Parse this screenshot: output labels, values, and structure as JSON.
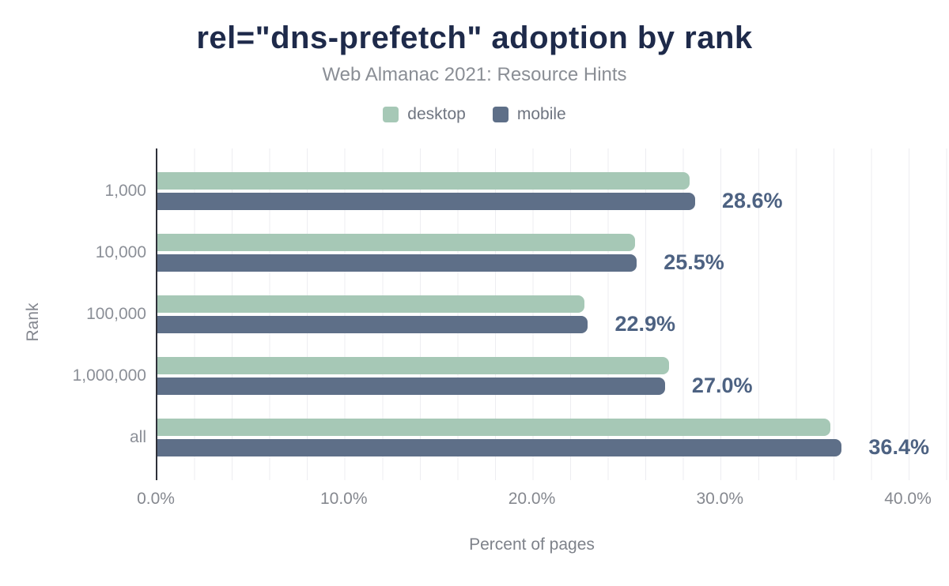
{
  "title": "rel=\"dns-prefetch\" adoption by rank",
  "subtitle": "Web Almanac 2021: Resource Hints",
  "legend": [
    {
      "label": "desktop",
      "color": "#a6c8b6"
    },
    {
      "label": "mobile",
      "color": "#5e6f88"
    }
  ],
  "chart_data": {
    "type": "bar",
    "orientation": "horizontal",
    "title": "rel=\"dns-prefetch\" adoption by rank",
    "subtitle": "Web Almanac 2021: Resource Hints",
    "xlabel": "Percent of pages",
    "ylabel": "Rank",
    "xlim": [
      0,
      40
    ],
    "x_ticks": [
      "0.0%",
      "10.0%",
      "20.0%",
      "30.0%",
      "40.0%"
    ],
    "grid": "vertical minor gridlines every 2%",
    "legend_position": "top center",
    "categories": [
      "1,000",
      "10,000",
      "100,000",
      "1,000,000",
      "all"
    ],
    "series": [
      {
        "name": "desktop",
        "color": "#a6c8b6",
        "values": [
          28.3,
          25.4,
          22.7,
          27.2,
          35.8
        ]
      },
      {
        "name": "mobile",
        "color": "#5e6f88",
        "values": [
          28.6,
          25.5,
          22.9,
          27.0,
          36.4
        ]
      }
    ],
    "value_labels": {
      "labeled_series": "mobile",
      "texts": [
        "28.6%",
        "25.5%",
        "22.9%",
        "27.0%",
        "36.4%"
      ],
      "color": "#4d6282"
    }
  },
  "colors": {
    "title": "#1e2a4a",
    "subtitle_text": "#8a8e95",
    "axis_line": "#2e3039",
    "tick_text": "#85888f",
    "gridline": "#ededf1",
    "background": "#ffffff"
  }
}
